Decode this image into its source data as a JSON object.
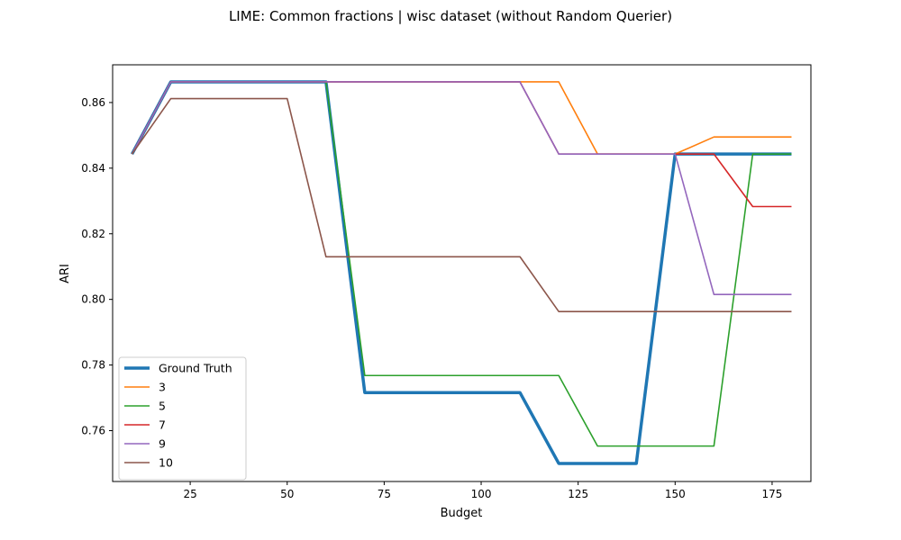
{
  "chart_data": {
    "type": "line",
    "title": "LIME: Common fractions | wisc dataset (without Random Querier)",
    "xlabel": "Budget",
    "ylabel": "ARI",
    "xlim": [
      5,
      185
    ],
    "ylim": [
      0.7445,
      0.8715
    ],
    "xticks": [
      25,
      50,
      75,
      100,
      125,
      150,
      175
    ],
    "yticks": [
      0.76,
      0.78,
      0.8,
      0.82,
      0.84,
      0.86
    ],
    "ytick_labels": [
      "0.76",
      "0.78",
      "0.80",
      "0.82",
      "0.84",
      "0.86"
    ],
    "grid": false,
    "legend_position": "lower-left",
    "x": [
      10,
      20,
      30,
      40,
      50,
      60,
      70,
      80,
      90,
      100,
      110,
      120,
      130,
      140,
      150,
      160,
      170,
      180
    ],
    "series": [
      {
        "name": "Ground Truth",
        "color": "#1f77b4",
        "values": [
          0.8443,
          0.8663,
          0.8663,
          0.8663,
          0.8663,
          0.8663,
          0.7716,
          0.7716,
          0.7716,
          0.7716,
          0.7716,
          0.75,
          0.75,
          0.75,
          0.8443,
          0.8443,
          0.8443,
          0.8443
        ]
      },
      {
        "name": "3",
        "color": "#ff7f0e",
        "values": [
          0.8443,
          0.8663,
          0.8663,
          0.8663,
          0.8663,
          0.8663,
          0.8663,
          0.8663,
          0.8663,
          0.8663,
          0.8663,
          0.8663,
          0.8443,
          0.8443,
          0.8443,
          0.8495,
          0.8495,
          0.8495
        ]
      },
      {
        "name": "5",
        "color": "#2ca02c",
        "values": [
          0.8443,
          0.8663,
          0.8663,
          0.8663,
          0.8663,
          0.8663,
          0.7768,
          0.7768,
          0.7768,
          0.7768,
          0.7768,
          0.7768,
          0.7553,
          0.7553,
          0.7553,
          0.7553,
          0.8443,
          0.8443
        ]
      },
      {
        "name": "7",
        "color": "#d62728",
        "values": [
          0.8443,
          0.8663,
          0.8663,
          0.8663,
          0.8663,
          0.8663,
          0.8663,
          0.8663,
          0.8663,
          0.8663,
          0.8663,
          0.8443,
          0.8443,
          0.8443,
          0.8443,
          0.8443,
          0.8283,
          0.8283
        ]
      },
      {
        "name": "9",
        "color": "#9467bd",
        "values": [
          0.8443,
          0.8663,
          0.8663,
          0.8663,
          0.8663,
          0.8663,
          0.8663,
          0.8663,
          0.8663,
          0.8663,
          0.8663,
          0.8443,
          0.8443,
          0.8443,
          0.8443,
          0.8015,
          0.8015,
          0.8015
        ]
      },
      {
        "name": "10",
        "color": "#8c564b",
        "values": [
          0.8443,
          0.8612,
          0.8612,
          0.8612,
          0.8612,
          0.813,
          0.813,
          0.813,
          0.813,
          0.813,
          0.813,
          0.7963,
          0.7963,
          0.7963,
          0.7963,
          0.7963,
          0.7963,
          0.7963
        ]
      }
    ]
  }
}
